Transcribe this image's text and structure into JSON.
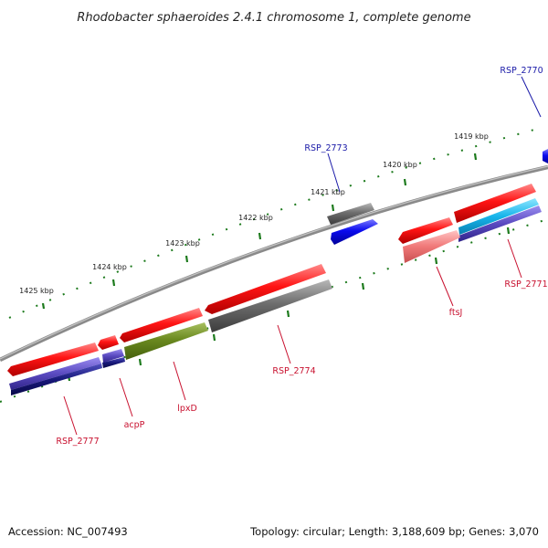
{
  "title": "Rhodobacter sphaeroides 2.4.1 chromosome 1, complete genome",
  "footer": {
    "accession": "Accession: NC_007493",
    "summary": "Topology: circular; Length: 3,188,609 bp; Genes: 3,070"
  },
  "ticks": {
    "t1419": "1419 kbp",
    "t1420": "1420 kbp",
    "t1421": "1421 kbp",
    "t1422": "1422 kbp",
    "t1423": "1423 kbp",
    "t1424": "1424 kbp",
    "t1425": "1425 kbp"
  },
  "genes": {
    "rsp2770": "RSP_2770",
    "rsp2773": "RSP_2773",
    "rsp2771": "RSP_2771",
    "ftsj": "ftsJ",
    "rsp2774": "RSP_2774",
    "lpxd": "lpxD",
    "acpp": "acpP",
    "rsp2777": "RSP_2777"
  },
  "colors": {
    "backbone": "#8a8a8a",
    "gene_red": "#ee1111",
    "gene_gray": "#707070",
    "gene_blue": "#1010ee",
    "gene_olive": "#6f8f22",
    "gene_cyan": "#22bbee",
    "gene_purple": "#6a5acd",
    "gene_pink": "#f07a7a",
    "tick_green": "#1c7a1c",
    "label_blue": "#1a1aa8",
    "label_red": "#c8102e"
  }
}
